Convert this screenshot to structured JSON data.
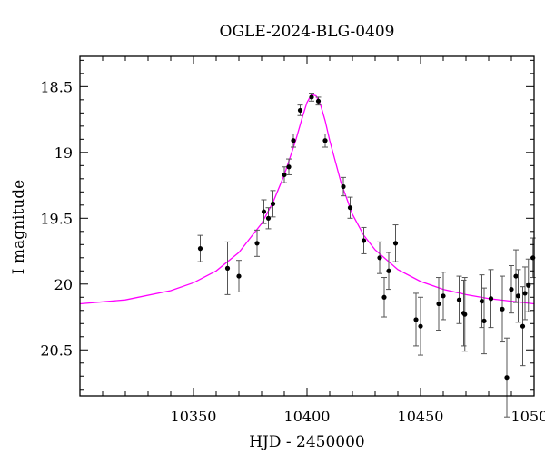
{
  "chart_data": {
    "type": "scatter",
    "title": "OGLE-2024-BLG-0409",
    "xlabel": "HJD - 2450000",
    "ylabel": "I magnitude",
    "xlim": [
      10300,
      10500
    ],
    "ylim": [
      20.85,
      18.27
    ],
    "y_inverted": true,
    "x_ticks": [
      10350,
      10400,
      10450,
      10500
    ],
    "y_ticks": [
      18.5,
      19,
      19.5,
      20,
      20.5
    ],
    "x_tick_labels": [
      "10350",
      "10400",
      "10450",
      "10500"
    ],
    "y_tick_labels": [
      "18.5",
      "19",
      "19.5",
      "20",
      "20.5"
    ],
    "grid": false,
    "colors": {
      "points": "#000000",
      "errorbars": "#555555",
      "model": "#ff00ff"
    },
    "points": [
      {
        "x": 10353,
        "y": 19.73,
        "err": 0.1
      },
      {
        "x": 10365,
        "y": 19.88,
        "err": 0.2
      },
      {
        "x": 10370,
        "y": 19.94,
        "err": 0.12
      },
      {
        "x": 10378,
        "y": 19.69,
        "err": 0.1
      },
      {
        "x": 10381,
        "y": 19.45,
        "err": 0.09
      },
      {
        "x": 10383,
        "y": 19.5,
        "err": 0.08
      },
      {
        "x": 10385,
        "y": 19.39,
        "err": 0.1
      },
      {
        "x": 10390,
        "y": 19.17,
        "err": 0.06
      },
      {
        "x": 10392,
        "y": 19.11,
        "err": 0.06
      },
      {
        "x": 10394,
        "y": 18.91,
        "err": 0.05
      },
      {
        "x": 10397,
        "y": 18.68,
        "err": 0.04
      },
      {
        "x": 10402,
        "y": 18.58,
        "err": 0.03
      },
      {
        "x": 10405,
        "y": 18.61,
        "err": 0.03
      },
      {
        "x": 10408,
        "y": 18.91,
        "err": 0.05
      },
      {
        "x": 10416,
        "y": 19.26,
        "err": 0.07
      },
      {
        "x": 10419,
        "y": 19.42,
        "err": 0.08
      },
      {
        "x": 10425,
        "y": 19.67,
        "err": 0.1
      },
      {
        "x": 10432,
        "y": 19.8,
        "err": 0.12
      },
      {
        "x": 10434,
        "y": 20.1,
        "err": 0.15
      },
      {
        "x": 10436,
        "y": 19.9,
        "err": 0.14
      },
      {
        "x": 10439,
        "y": 19.69,
        "err": 0.14
      },
      {
        "x": 10448,
        "y": 20.27,
        "err": 0.2
      },
      {
        "x": 10450,
        "y": 20.32,
        "err": 0.22
      },
      {
        "x": 10458,
        "y": 20.15,
        "err": 0.2
      },
      {
        "x": 10460,
        "y": 20.09,
        "err": 0.18
      },
      {
        "x": 10467,
        "y": 20.12,
        "err": 0.18
      },
      {
        "x": 10469,
        "y": 20.22,
        "err": 0.25
      },
      {
        "x": 10469.5,
        "y": 20.23,
        "err": 0.28
      },
      {
        "x": 10477,
        "y": 20.13,
        "err": 0.2
      },
      {
        "x": 10478,
        "y": 20.28,
        "err": 0.25
      },
      {
        "x": 10481,
        "y": 20.11,
        "err": 0.22
      },
      {
        "x": 10486,
        "y": 20.19,
        "err": 0.25
      },
      {
        "x": 10488,
        "y": 20.71,
        "err": 0.3
      },
      {
        "x": 10490,
        "y": 20.04,
        "err": 0.18
      },
      {
        "x": 10492,
        "y": 19.94,
        "err": 0.2
      },
      {
        "x": 10493,
        "y": 20.09,
        "err": 0.2
      },
      {
        "x": 10495,
        "y": 20.32,
        "err": 0.3
      },
      {
        "x": 10496,
        "y": 20.07,
        "err": 0.2
      },
      {
        "x": 10497.5,
        "y": 20.01,
        "err": 0.2
      },
      {
        "x": 10499.5,
        "y": 19.8,
        "err": 0.15
      }
    ],
    "model": {
      "x": [
        10300,
        10320,
        10340,
        10350,
        10360,
        10370,
        10380,
        10385,
        10390,
        10395,
        10398,
        10400,
        10402,
        10404,
        10406,
        10408,
        10410,
        10415,
        10420,
        10425,
        10430,
        10440,
        10450,
        10460,
        10470,
        10480,
        10490,
        10500
      ],
      "y": [
        20.15,
        20.12,
        20.05,
        19.99,
        19.9,
        19.76,
        19.54,
        19.38,
        19.17,
        18.91,
        18.73,
        18.62,
        18.56,
        18.57,
        18.64,
        18.76,
        18.91,
        19.23,
        19.47,
        19.63,
        19.74,
        19.89,
        19.98,
        20.04,
        20.08,
        20.11,
        20.13,
        20.15
      ]
    }
  }
}
